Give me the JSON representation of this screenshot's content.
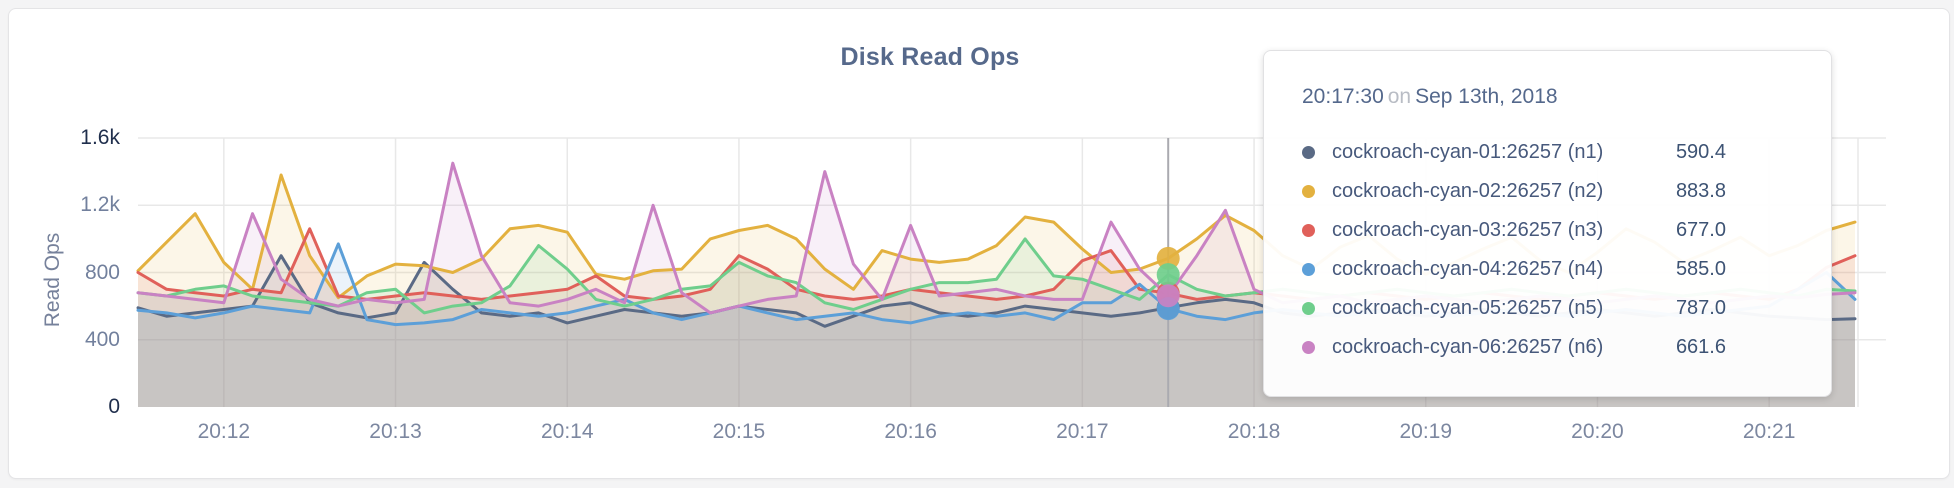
{
  "page_background": "#f4f4f5",
  "panel": {
    "title": "Disk Read Ops"
  },
  "axis": {
    "y_label": "Read Ops",
    "y_ticks": [
      {
        "value": 0,
        "label": "0",
        "emphasis": true
      },
      {
        "value": 400,
        "label": "400",
        "emphasis": false
      },
      {
        "value": 800,
        "label": "800",
        "emphasis": false
      },
      {
        "value": 1200,
        "label": "1.2k",
        "emphasis": false
      },
      {
        "value": 1600,
        "label": "1.6k",
        "emphasis": true
      }
    ],
    "x_ticks": [
      "20:12",
      "20:13",
      "20:14",
      "20:15",
      "20:16",
      "20:17",
      "20:18",
      "20:19",
      "20:20",
      "20:21"
    ]
  },
  "tooltip": {
    "time": "20:17:30",
    "on_word": "on",
    "date": "Sep 13th, 2018"
  },
  "chart_data": {
    "type": "area",
    "title": "Disk Read Ops",
    "ylabel": "Read Ops",
    "ylim": [
      0,
      1600
    ],
    "grid": true,
    "x_start": "20:11:30",
    "x_end": "20:21:30",
    "sample_interval_seconds": 10,
    "hover_index": 36,
    "hover_time": "20:17:30",
    "hover_guideline_color": "#aaaab0",
    "grid_color": "#e8e8e8",
    "series": [
      {
        "name": "cockroach-cyan-01:26257 (n1)",
        "color": "#5a6a85",
        "hover_value": "590.4",
        "values": [
          590,
          540,
          560,
          580,
          600,
          900,
          620,
          560,
          530,
          560,
          860,
          700,
          560,
          540,
          560,
          500,
          540,
          580,
          560,
          540,
          560,
          600,
          580,
          560,
          480,
          540,
          600,
          620,
          560,
          540,
          560,
          600,
          580,
          560,
          540,
          560,
          590.4,
          620,
          640,
          620,
          560,
          540,
          560,
          580,
          560,
          540,
          560,
          580,
          560,
          540,
          560,
          580,
          560,
          540,
          560,
          580,
          560,
          540,
          530,
          520,
          525
        ]
      },
      {
        "name": "cockroach-cyan-02:26257 (n2)",
        "color": "#e3b13f",
        "hover_value": "883.8",
        "values": [
          810,
          980,
          1150,
          860,
          700,
          1380,
          900,
          650,
          780,
          850,
          840,
          800,
          880,
          1060,
          1080,
          1040,
          790,
          760,
          810,
          820,
          1000,
          1050,
          1080,
          1000,
          820,
          700,
          930,
          880,
          860,
          880,
          960,
          1130,
          1100,
          940,
          800,
          820,
          883.8,
          1000,
          1140,
          1050,
          900,
          820,
          950,
          1020,
          880,
          790,
          860,
          940,
          1010,
          870,
          800,
          920,
          1060,
          980,
          860,
          930,
          1010,
          900,
          960,
          1050,
          1100
        ]
      },
      {
        "name": "cockroach-cyan-03:26257 (n3)",
        "color": "#e0605a",
        "hover_value": "677.0",
        "values": [
          800,
          700,
          680,
          660,
          700,
          680,
          1060,
          660,
          640,
          660,
          680,
          660,
          640,
          660,
          680,
          700,
          780,
          660,
          640,
          660,
          700,
          900,
          820,
          700,
          660,
          640,
          660,
          700,
          680,
          660,
          640,
          660,
          700,
          870,
          930,
          700,
          677,
          640,
          660,
          680,
          660,
          640,
          660,
          680,
          660,
          640,
          660,
          680,
          660,
          640,
          660,
          680,
          660,
          640,
          660,
          680,
          660,
          640,
          700,
          830,
          900
        ]
      },
      {
        "name": "cockroach-cyan-04:26257 (n4)",
        "color": "#5c9fd8",
        "hover_value": "585.0",
        "values": [
          575,
          560,
          530,
          560,
          600,
          580,
          560,
          970,
          520,
          490,
          500,
          520,
          580,
          560,
          540,
          560,
          600,
          640,
          560,
          520,
          560,
          600,
          560,
          520,
          540,
          560,
          520,
          500,
          540,
          560,
          540,
          560,
          520,
          620,
          620,
          730,
          585,
          540,
          520,
          560,
          580,
          560,
          540,
          560,
          580,
          560,
          540,
          560,
          580,
          560,
          540,
          560,
          580,
          560,
          540,
          560,
          580,
          600,
          700,
          800,
          640
        ]
      },
      {
        "name": "cockroach-cyan-05:26257 (n5)",
        "color": "#6fce8c",
        "hover_value": "787.0",
        "values": [
          680,
          660,
          700,
          720,
          660,
          640,
          620,
          600,
          680,
          700,
          560,
          600,
          620,
          720,
          960,
          820,
          640,
          600,
          640,
          700,
          720,
          860,
          780,
          740,
          620,
          580,
          640,
          700,
          740,
          740,
          760,
          1000,
          780,
          760,
          700,
          640,
          787,
          700,
          660,
          680,
          700,
          680,
          660,
          680,
          700,
          680,
          660,
          680,
          700,
          680,
          660,
          680,
          700,
          680,
          660,
          680,
          700,
          680,
          660,
          700,
          690
        ]
      },
      {
        "name": "cockroach-cyan-06:26257 (n6)",
        "color": "#c982c3",
        "hover_value": "661.6",
        "values": [
          680,
          660,
          640,
          620,
          1150,
          760,
          640,
          600,
          640,
          620,
          640,
          1450,
          900,
          620,
          600,
          640,
          700,
          620,
          1200,
          680,
          560,
          600,
          640,
          660,
          1400,
          850,
          640,
          1080,
          660,
          680,
          700,
          660,
          640,
          640,
          1100,
          820,
          661.6,
          900,
          1170,
          700,
          620,
          640,
          660,
          620,
          640,
          660,
          640,
          620,
          640,
          660,
          640,
          620,
          640,
          660,
          640,
          620,
          640,
          660,
          650,
          670,
          680
        ]
      }
    ]
  }
}
